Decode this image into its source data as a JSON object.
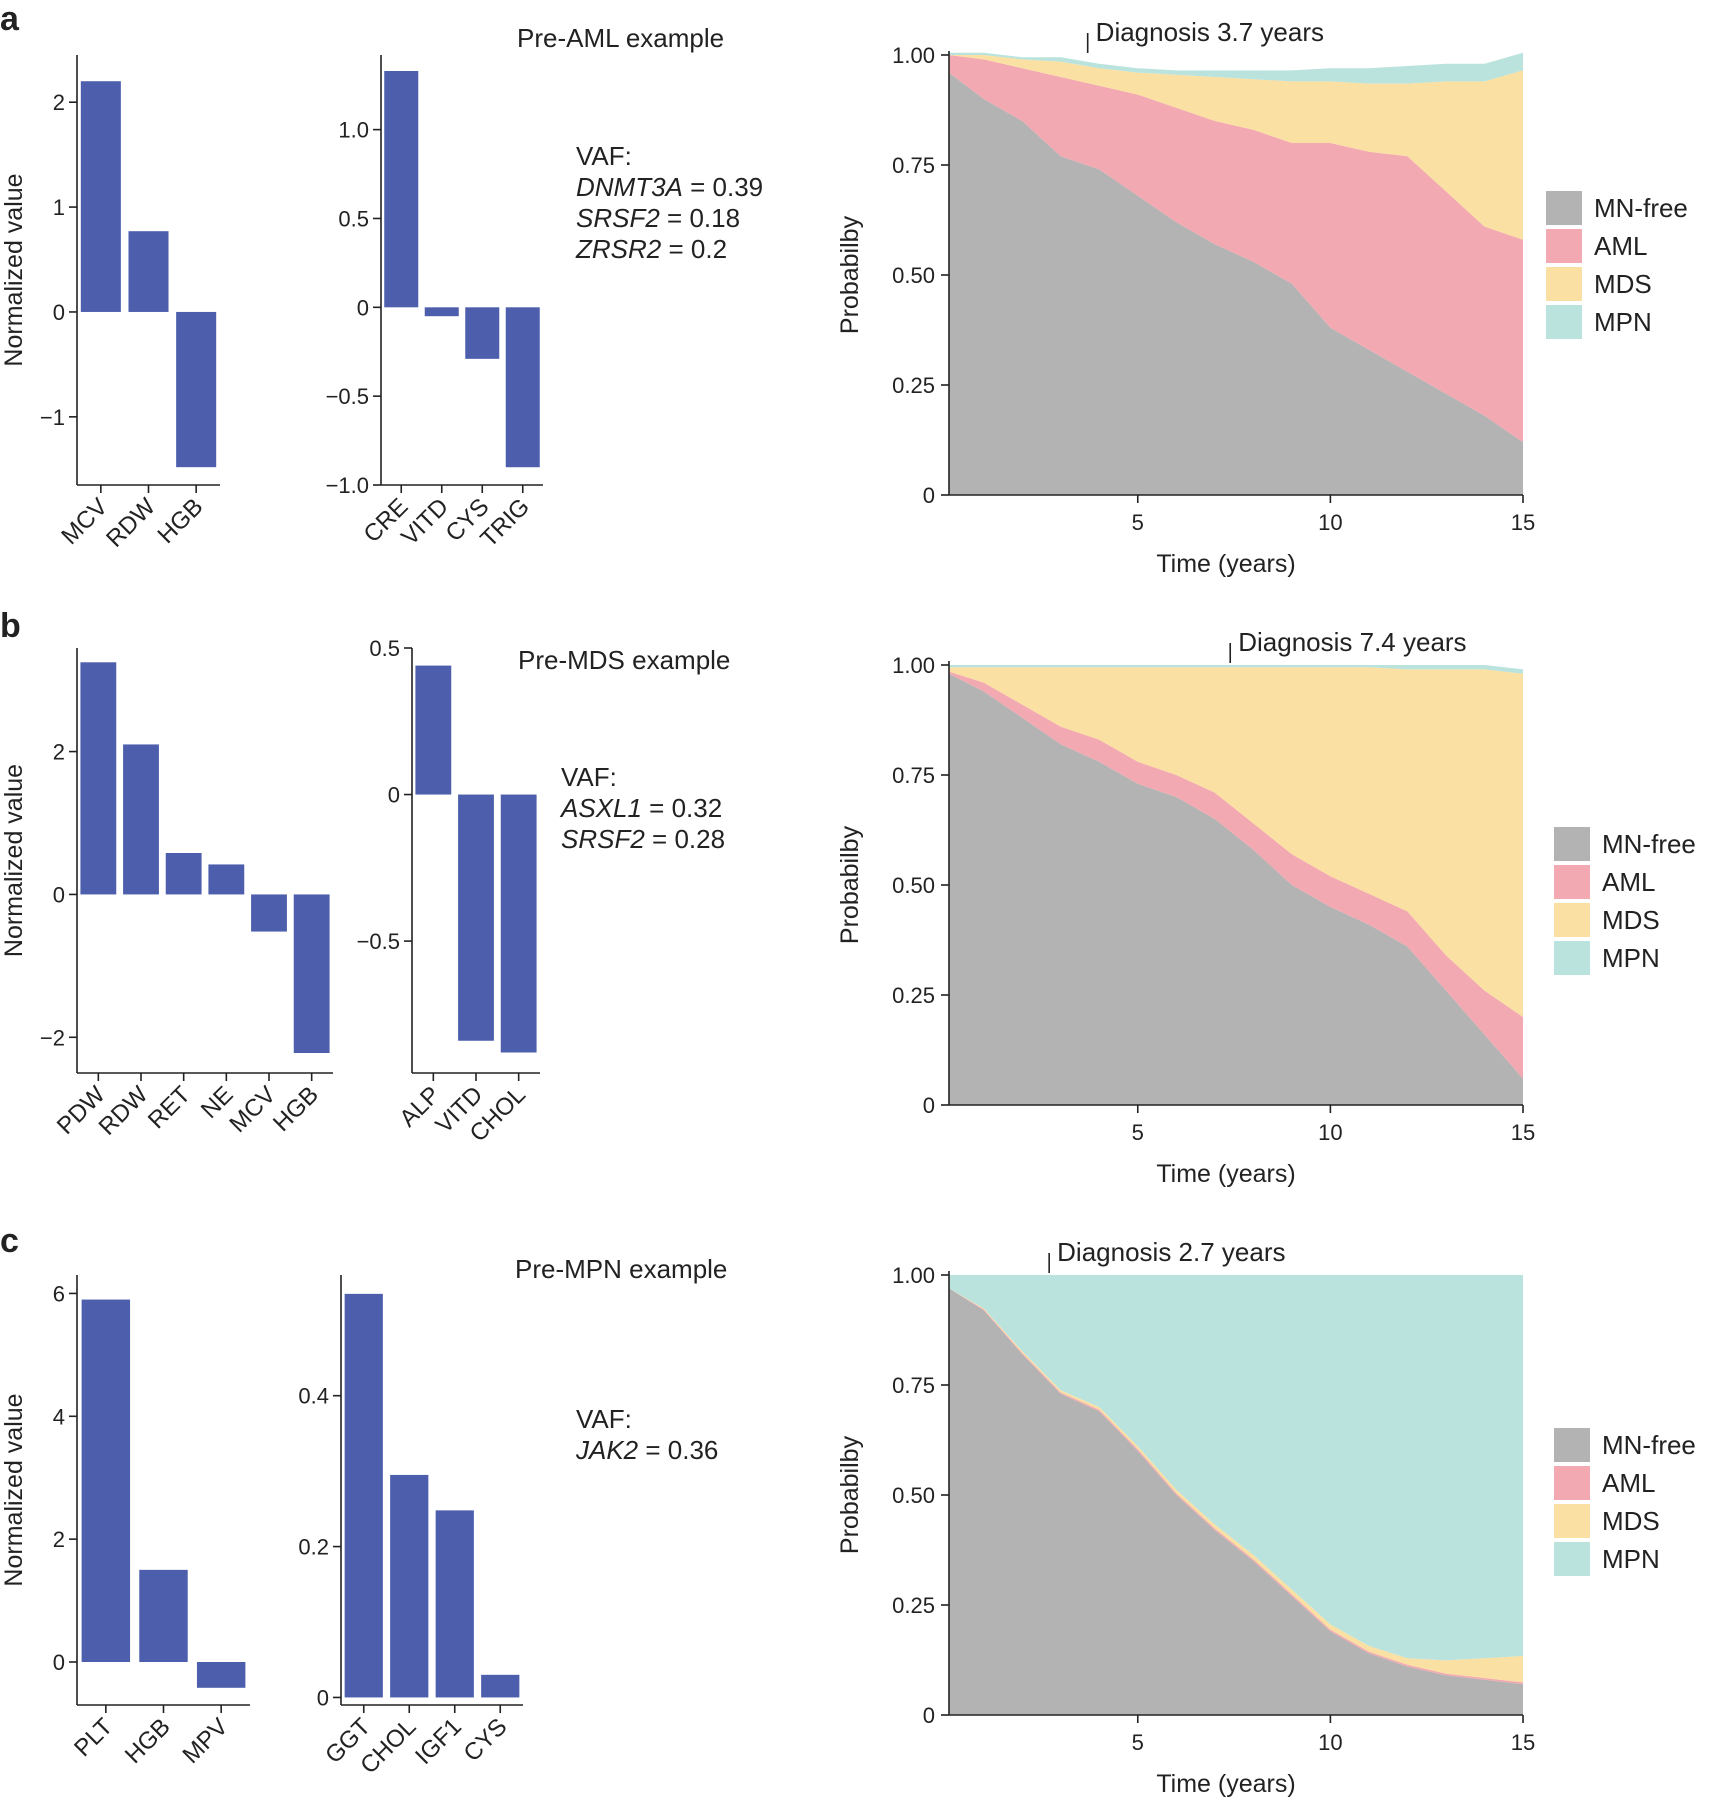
{
  "chart_data": [
    {
      "panel": "a",
      "example_title": "Pre-AML example",
      "vaf_header": "VAF:",
      "vaf": [
        {
          "gene": "DNMT3A",
          "text": " = 0.39"
        },
        {
          "gene": "SRSF2",
          "text": " = 0.18"
        },
        {
          "gene": "ZRSR2",
          "text": " = 0.2"
        }
      ],
      "bar_charts": [
        {
          "type": "bar",
          "ylabel": "Normalized value",
          "categories": [
            "MCV",
            "RDW",
            "HGB"
          ],
          "values": [
            2.2,
            0.77,
            -1.48
          ],
          "ylim": [
            -1.65,
            2.45
          ],
          "ticks": [
            -1,
            0,
            1,
            2
          ],
          "tick_labels": [
            "−1",
            "0",
            "1",
            "2"
          ]
        },
        {
          "type": "bar",
          "ylabel": "",
          "categories": [
            "CRE",
            "VITD",
            "CYS",
            "TRIG"
          ],
          "values": [
            1.33,
            -0.05,
            -0.29,
            -0.9
          ],
          "ylim": [
            -1.0,
            1.42
          ],
          "ticks": [
            -1.0,
            -0.5,
            0,
            0.5,
            1.0
          ],
          "tick_labels": [
            "−1.0",
            "−0.5",
            "0",
            "0.5",
            "1.0"
          ]
        }
      ],
      "area_chart": {
        "type": "area",
        "xlabel": "Time (years)",
        "ylabel": "Probabilby",
        "xlim": [
          0.1,
          15
        ],
        "ylim": [
          0,
          1
        ],
        "x_ticks": [
          5,
          10,
          15
        ],
        "x_tick_labels": [
          "5",
          "10",
          "15"
        ],
        "y_ticks": [
          0,
          0.25,
          0.5,
          0.75,
          1.0
        ],
        "y_tick_labels": [
          "0",
          "0.25",
          "0.50",
          "0.75",
          "1.00"
        ],
        "diagnosis_x": 3.7,
        "diagnosis_label": "Diagnosis 3.7 years",
        "x": [
          0.1,
          1,
          2,
          3,
          4,
          5,
          6,
          7,
          8,
          9,
          10,
          11,
          12,
          13,
          14,
          15
        ],
        "series": [
          {
            "name": "MN-free",
            "color": "#b3b3b3",
            "values": [
              0.96,
              0.9,
              0.85,
              0.77,
              0.74,
              0.68,
              0.62,
              0.57,
              0.53,
              0.48,
              0.38,
              0.33,
              0.28,
              0.23,
              0.18,
              0.12
            ]
          },
          {
            "name": "AML",
            "color": "#f2a9b1",
            "values": [
              0.04,
              0.09,
              0.12,
              0.18,
              0.19,
              0.23,
              0.26,
              0.28,
              0.3,
              0.32,
              0.42,
              0.45,
              0.49,
              0.46,
              0.43,
              0.46
            ]
          },
          {
            "name": "MDS",
            "color": "#fbe0a3",
            "values": [
              0.0,
              0.01,
              0.02,
              0.035,
              0.04,
              0.05,
              0.075,
              0.1,
              0.115,
              0.14,
              0.14,
              0.155,
              0.165,
              0.25,
              0.33,
              0.385
            ]
          },
          {
            "name": "MPN",
            "color": "#bae3dd",
            "values": [
              0.005,
              0.005,
              0.005,
              0.01,
              0.01,
              0.01,
              0.01,
              0.015,
              0.02,
              0.025,
              0.03,
              0.035,
              0.04,
              0.04,
              0.04,
              0.04
            ]
          }
        ]
      }
    },
    {
      "panel": "b",
      "example_title": "Pre-MDS example",
      "vaf_header": "VAF:",
      "vaf": [
        {
          "gene": "ASXL1",
          "text": " = 0.32"
        },
        {
          "gene": "SRSF2",
          "text": " = 0.28"
        }
      ],
      "bar_charts": [
        {
          "type": "bar",
          "ylabel": "Normalized value",
          "categories": [
            "PDW",
            "RDW",
            "RET",
            "NE",
            "MCV",
            "HGB"
          ],
          "values": [
            3.25,
            2.1,
            0.58,
            0.42,
            -0.52,
            -2.22
          ],
          "ylim": [
            -2.5,
            3.45
          ],
          "ticks": [
            -2,
            0,
            2
          ],
          "tick_labels": [
            "−2",
            "0",
            "2"
          ]
        },
        {
          "type": "bar",
          "ylabel": "",
          "categories": [
            "ALP",
            "VITD",
            "CHOL"
          ],
          "values": [
            0.44,
            -0.84,
            -0.88
          ],
          "ylim": [
            -0.95,
            0.5
          ],
          "ticks": [
            -0.5,
            0,
            0.5
          ],
          "tick_labels": [
            "−0.5",
            "0",
            "0.5"
          ]
        }
      ],
      "area_chart": {
        "type": "area",
        "xlabel": "Time (years)",
        "ylabel": "Probabilby",
        "xlim": [
          0.1,
          15
        ],
        "ylim": [
          0,
          1
        ],
        "x_ticks": [
          5,
          10,
          15
        ],
        "x_tick_labels": [
          "5",
          "10",
          "15"
        ],
        "y_ticks": [
          0,
          0.25,
          0.5,
          0.75,
          1.0
        ],
        "y_tick_labels": [
          "0",
          "0.25",
          "0.50",
          "0.75",
          "1.00"
        ],
        "diagnosis_x": 7.4,
        "diagnosis_label": "Diagnosis 7.4 years",
        "x": [
          0.1,
          1,
          2,
          3,
          4,
          5,
          6,
          7,
          8,
          9,
          10,
          11,
          12,
          13,
          14,
          15
        ],
        "series": [
          {
            "name": "MN-free",
            "color": "#b3b3b3",
            "values": [
              0.98,
              0.94,
              0.88,
              0.82,
              0.78,
              0.73,
              0.7,
              0.65,
              0.58,
              0.5,
              0.45,
              0.41,
              0.36,
              0.26,
              0.16,
              0.06
            ]
          },
          {
            "name": "AML",
            "color": "#f2a9b1",
            "values": [
              0.005,
              0.02,
              0.03,
              0.04,
              0.05,
              0.05,
              0.05,
              0.06,
              0.06,
              0.07,
              0.07,
              0.07,
              0.08,
              0.08,
              0.1,
              0.14
            ]
          },
          {
            "name": "MDS",
            "color": "#fbe0a3",
            "values": [
              0.01,
              0.035,
              0.085,
              0.135,
              0.165,
              0.215,
              0.245,
              0.285,
              0.355,
              0.425,
              0.475,
              0.515,
              0.55,
              0.65,
              0.73,
              0.78
            ]
          },
          {
            "name": "MPN",
            "color": "#bae3dd",
            "values": [
              0.005,
              0.005,
              0.005,
              0.005,
              0.005,
              0.005,
              0.005,
              0.005,
              0.005,
              0.005,
              0.005,
              0.005,
              0.01,
              0.01,
              0.01,
              0.01
            ]
          }
        ]
      }
    },
    {
      "panel": "c",
      "example_title": "Pre-MPN example",
      "vaf_header": "VAF:",
      "vaf": [
        {
          "gene": "JAK2",
          "text": " = 0.36"
        }
      ],
      "bar_charts": [
        {
          "type": "bar",
          "ylabel": "Normalized value",
          "categories": [
            "PLT",
            "HGB",
            "MPV"
          ],
          "values": [
            5.9,
            1.5,
            -0.42
          ],
          "ylim": [
            -0.7,
            6.3
          ],
          "ticks": [
            0,
            2,
            4,
            6
          ],
          "tick_labels": [
            "0",
            "2",
            "4",
            "6"
          ]
        },
        {
          "type": "bar",
          "ylabel": "",
          "categories": [
            "GGT",
            "CHOL",
            "IGF1",
            "CYS"
          ],
          "values": [
            0.535,
            0.295,
            0.248,
            0.03
          ],
          "ylim": [
            -0.01,
            0.56
          ],
          "ticks": [
            0,
            0.2,
            0.4
          ],
          "tick_labels": [
            "0",
            "0.2",
            "0.4"
          ]
        }
      ],
      "area_chart": {
        "type": "area",
        "xlabel": "Time (years)",
        "ylabel": "Probabilby",
        "xlim": [
          0.1,
          15
        ],
        "ylim": [
          0,
          1
        ],
        "x_ticks": [
          5,
          10,
          15
        ],
        "x_tick_labels": [
          "5",
          "10",
          "15"
        ],
        "y_ticks": [
          0,
          0.25,
          0.5,
          0.75,
          1.0
        ],
        "y_tick_labels": [
          "0",
          "0.25",
          "0.50",
          "0.75",
          "1.00"
        ],
        "diagnosis_x": 2.7,
        "diagnosis_label": "Diagnosis 2.7 years",
        "x": [
          0.1,
          1,
          2,
          3,
          4,
          5,
          6,
          7,
          8,
          9,
          10,
          11,
          12,
          13,
          14,
          15
        ],
        "series": [
          {
            "name": "MN-free",
            "color": "#b3b3b3",
            "values": [
              0.97,
              0.92,
              0.82,
              0.73,
              0.69,
              0.6,
              0.5,
              0.42,
              0.35,
              0.27,
              0.19,
              0.14,
              0.11,
              0.09,
              0.08,
              0.07
            ]
          },
          {
            "name": "AML",
            "color": "#f2a9b1",
            "values": [
              0.0,
              0.002,
              0.003,
              0.003,
              0.004,
              0.004,
              0.004,
              0.004,
              0.004,
              0.004,
              0.004,
              0.004,
              0.004,
              0.004,
              0.004,
              0.004
            ]
          },
          {
            "name": "MDS",
            "color": "#fbe0a3",
            "values": [
              0.0,
              0.002,
              0.004,
              0.005,
              0.006,
              0.007,
              0.008,
              0.009,
              0.01,
              0.011,
              0.012,
              0.013,
              0.015,
              0.03,
              0.045,
              0.06
            ]
          },
          {
            "name": "MPN",
            "color": "#bae3dd",
            "values": [
              0.03,
              0.076,
              0.173,
              0.262,
              0.3,
              0.389,
              0.488,
              0.567,
              0.636,
              0.715,
              0.794,
              0.843,
              0.871,
              0.876,
              0.871,
              0.866
            ]
          }
        ]
      }
    }
  ],
  "colors": {
    "bar": "#4d5fac",
    "axis": "#222222"
  }
}
